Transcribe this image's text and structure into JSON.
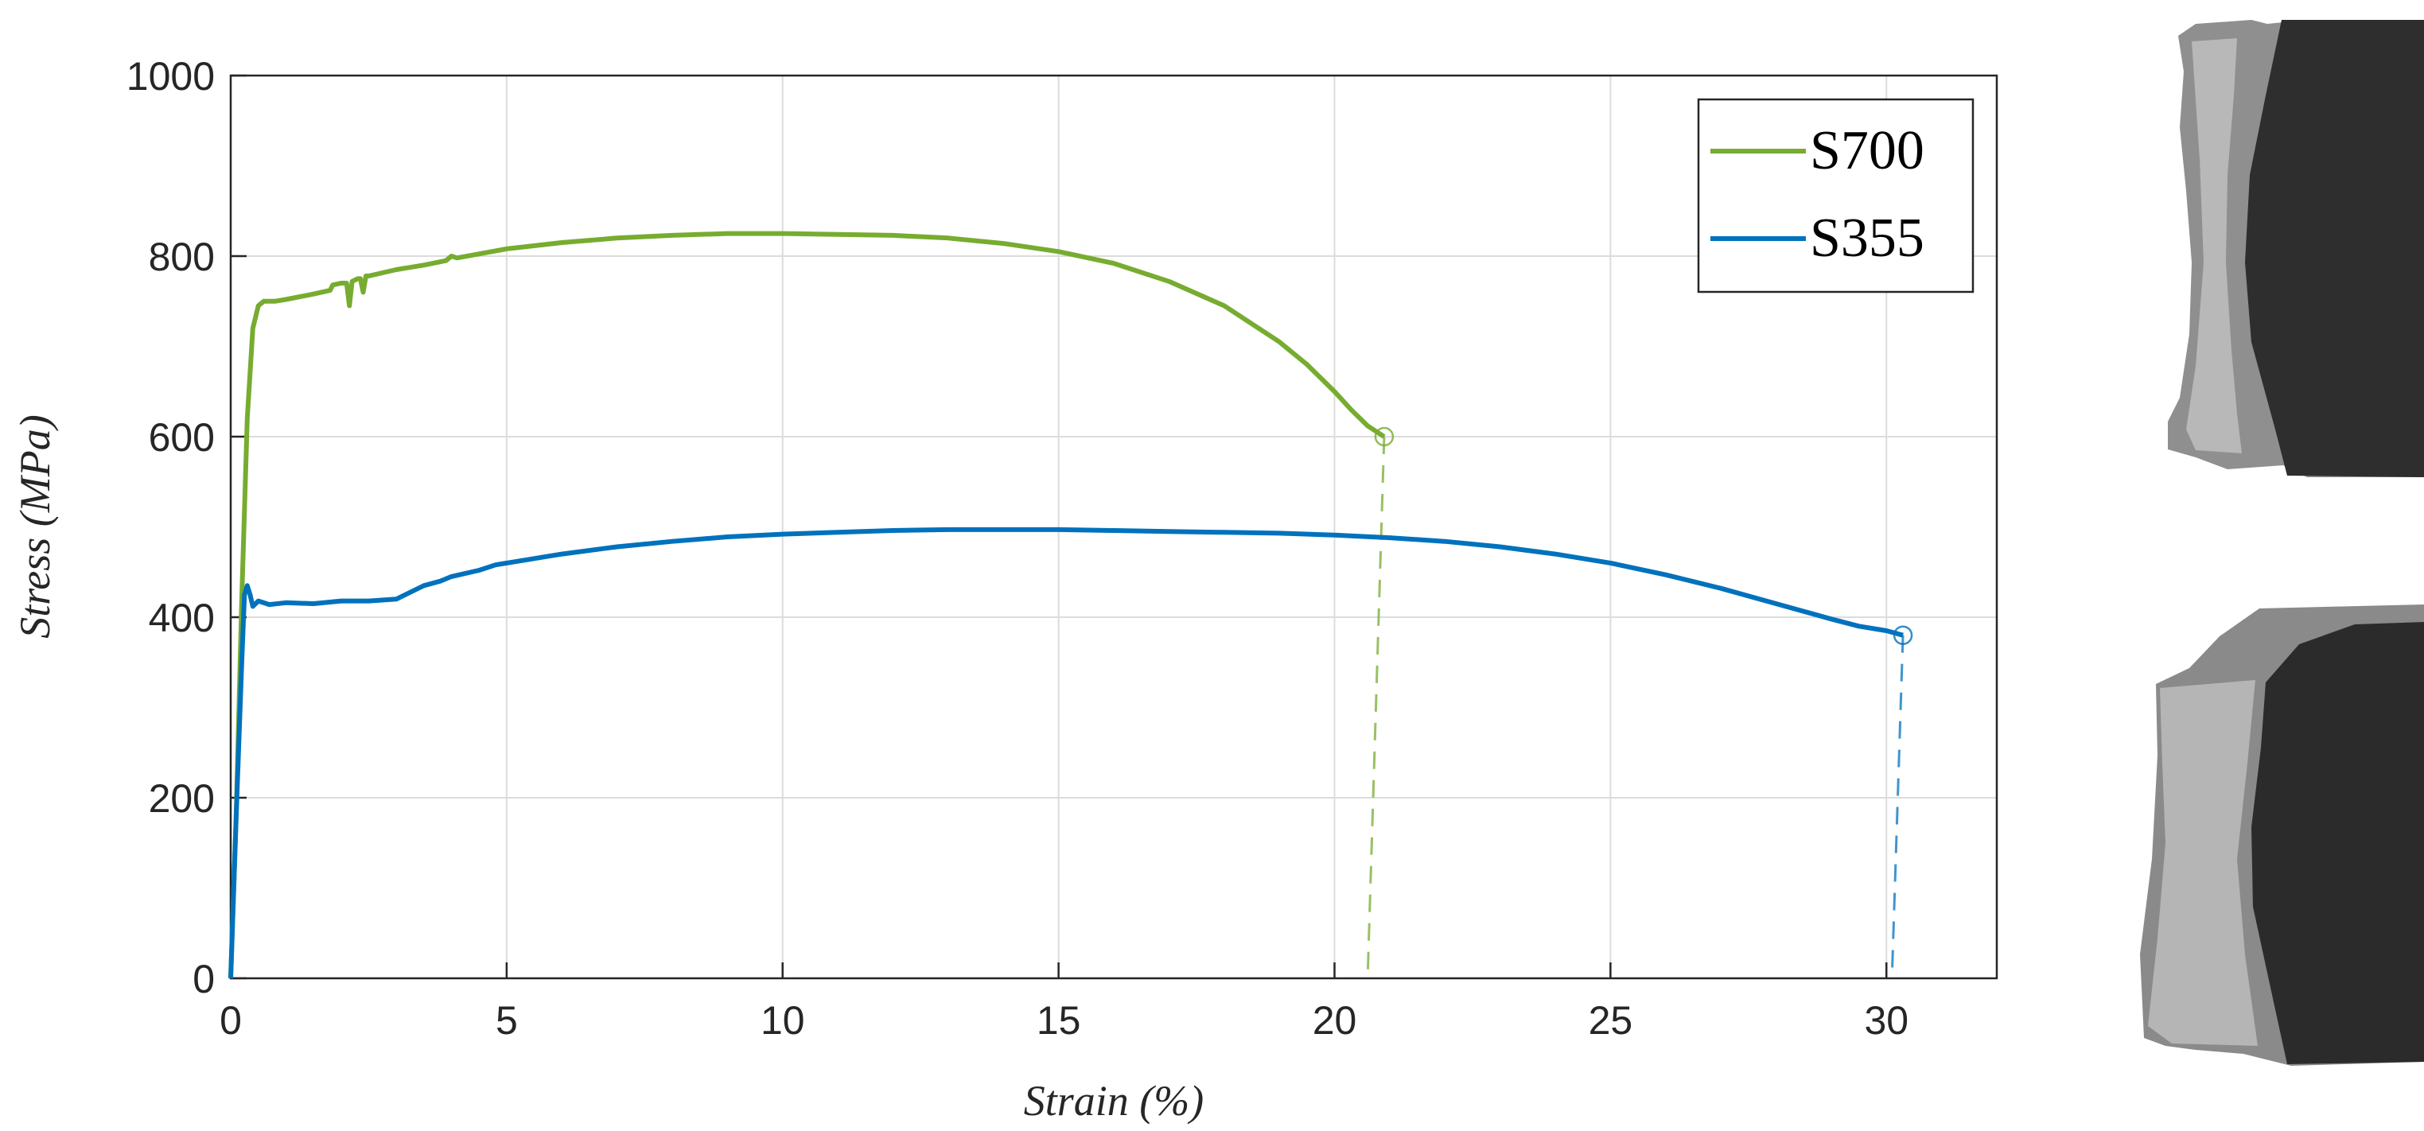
{
  "chart_data": {
    "type": "line",
    "title": "",
    "xlabel": "Strain (%)",
    "ylabel": "Stress (MPa)",
    "xlim": [
      0,
      32
    ],
    "ylim": [
      0,
      1000
    ],
    "xticks": [
      0,
      5,
      10,
      15,
      20,
      25,
      30
    ],
    "yticks": [
      0,
      200,
      400,
      600,
      800,
      1000
    ],
    "grid": true,
    "legend_position": "top-right",
    "series": [
      {
        "name": "S700",
        "color": "#77ac30",
        "x": [
          0,
          0.1,
          0.2,
          0.3,
          0.4,
          0.5,
          0.6,
          0.8,
          1.0,
          1.5,
          1.8,
          1.85,
          2.0,
          2.1,
          2.15,
          2.2,
          2.3,
          2.35,
          2.4,
          2.45,
          2.5,
          3.0,
          3.5,
          3.9,
          4.0,
          4.1,
          5,
          6,
          7,
          8,
          9,
          10,
          11,
          12,
          13,
          14,
          15,
          16,
          17,
          18,
          19,
          19.5,
          20,
          20.3,
          20.6,
          20.9
        ],
        "y": [
          0,
          180,
          420,
          620,
          720,
          745,
          750,
          750,
          752,
          758,
          762,
          768,
          770,
          770,
          745,
          772,
          775,
          775,
          760,
          778,
          778,
          785,
          790,
          795,
          800,
          798,
          808,
          815,
          820,
          823,
          825,
          825,
          824,
          823,
          820,
          814,
          805,
          792,
          772,
          745,
          705,
          680,
          650,
          630,
          612,
          600
        ],
        "fracture": {
          "x": 20.9,
          "y": 600
        },
        "drop_x": [
          20.9,
          20.6
        ],
        "drop_y": [
          600,
          0
        ]
      },
      {
        "name": "S355",
        "color": "#0072bd",
        "x": [
          0,
          0.1,
          0.2,
          0.25,
          0.3,
          0.35,
          0.4,
          0.5,
          0.7,
          1.0,
          1.5,
          2.0,
          2.5,
          3.0,
          3.5,
          3.8,
          4.0,
          4.5,
          4.8,
          5,
          6,
          7,
          8,
          9,
          10,
          11,
          12,
          13,
          14,
          15,
          16,
          17,
          18,
          19,
          20,
          21,
          22,
          23,
          24,
          25,
          26,
          27,
          28,
          29,
          29.5,
          30,
          30.3
        ],
        "y": [
          0,
          180,
          350,
          425,
          435,
          425,
          412,
          418,
          414,
          416,
          415,
          418,
          418,
          420,
          435,
          440,
          445,
          452,
          458,
          460,
          470,
          478,
          484,
          489,
          492,
          494,
          496,
          497,
          497,
          497,
          496,
          495,
          494,
          493,
          491,
          488,
          484,
          478,
          470,
          460,
          447,
          432,
          415,
          398,
          390,
          385,
          380
        ],
        "fracture": {
          "x": 30.3,
          "y": 380
        },
        "drop_x": [
          30.3,
          30.1
        ],
        "drop_y": [
          380,
          0
        ]
      }
    ]
  },
  "photos": [
    {
      "name": "S700 fracture specimen",
      "shading": "#2e2e2e"
    },
    {
      "name": "S355 fracture specimen",
      "shading": "#2b2b2b"
    }
  ]
}
